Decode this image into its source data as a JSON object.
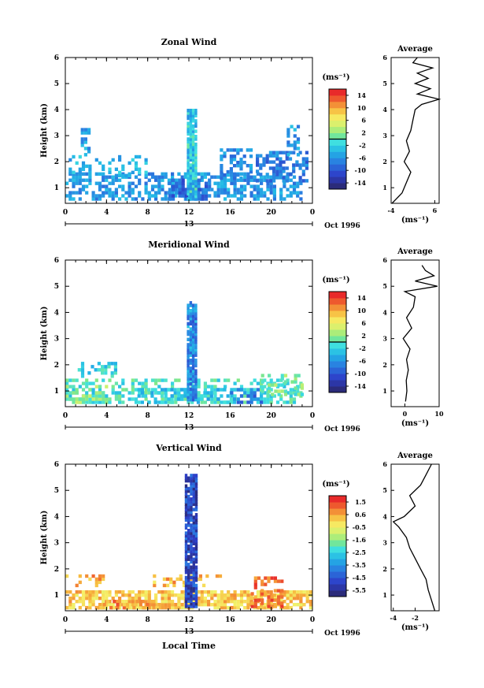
{
  "figure": {
    "date_label": "Oct 1996",
    "day_label": "13",
    "xlabel": "Local Time"
  },
  "chart_data": [
    {
      "type": "heatmap",
      "title": "Zonal Wind",
      "ylabel": "Height (km)",
      "xlim": [
        0,
        24
      ],
      "ylim": [
        0.4,
        6
      ],
      "x_ticks": [
        "0",
        "4",
        "8",
        "12",
        "16",
        "20",
        "0"
      ],
      "y_ticks": [
        "1",
        "2",
        "3",
        "4",
        "5",
        "6"
      ],
      "colorbar": {
        "unit": "(ms⁻¹)",
        "min": -16,
        "max": 16,
        "ticks": [
          "14",
          "10",
          "6",
          "2",
          "-2",
          "-6",
          "-10",
          "-14"
        ],
        "marker": 0
      },
      "spike_color": "#29a8e0",
      "patches": [
        {
          "x": [
            0,
            23
          ],
          "y": [
            0.5,
            1.5
          ],
          "value": -6,
          "density": 0.55
        },
        {
          "x": [
            0,
            8
          ],
          "y": [
            1.4,
            2.2
          ],
          "value": -4,
          "density": 0.28
        },
        {
          "x": [
            1.5,
            2.3
          ],
          "y": [
            2.2,
            3.2
          ],
          "value": -5,
          "density": 0.45
        },
        {
          "x": [
            15,
            18
          ],
          "y": [
            1.3,
            2.5
          ],
          "value": -7,
          "density": 0.5
        },
        {
          "x": [
            18.5,
            23.5
          ],
          "y": [
            1.2,
            2.3
          ],
          "value": -8,
          "density": 0.45
        },
        {
          "x": [
            21.5,
            22.6
          ],
          "y": [
            2.2,
            3.4
          ],
          "value": -6,
          "density": 0.5
        },
        {
          "x": [
            10,
            14
          ],
          "y": [
            0.5,
            1.3
          ],
          "value": -9,
          "density": 0.6
        }
      ],
      "spike": {
        "x": [
          11.8,
          12.7
        ],
        "y": [
          0.5,
          4.0
        ],
        "value": -3
      },
      "average": {
        "xlim": [
          -4,
          7
        ],
        "x_ticks": [
          "-4",
          "6"
        ],
        "xlabel": "(ms⁻¹)",
        "title": "Average",
        "height": [
          0.4,
          0.8,
          1.2,
          1.6,
          2.0,
          2.4,
          2.8,
          3.2,
          3.6,
          4.0,
          4.2,
          4.4,
          4.6,
          4.8,
          5.0,
          5.2,
          5.4,
          5.6,
          5.8,
          6.0
        ],
        "value": [
          -3.8,
          -1.5,
          -0.5,
          0.5,
          -1.0,
          0.2,
          -0.5,
          0.5,
          1.0,
          1.5,
          3.0,
          7.0,
          2.0,
          5.0,
          1.5,
          4.5,
          2.0,
          5.5,
          1.0,
          2.0
        ]
      }
    },
    {
      "type": "heatmap",
      "title": "Meridional Wind",
      "ylabel": "Height (km)",
      "xlim": [
        0,
        24
      ],
      "ylim": [
        0.4,
        6
      ],
      "x_ticks": [
        "0",
        "4",
        "8",
        "12",
        "16",
        "20",
        "0"
      ],
      "y_ticks": [
        "1",
        "2",
        "3",
        "4",
        "5",
        "6"
      ],
      "colorbar": {
        "unit": "(ms⁻¹)",
        "min": -16,
        "max": 16,
        "ticks": [
          "14",
          "10",
          "6",
          "2",
          "-2",
          "-6",
          "-10",
          "-14"
        ],
        "marker": 0
      },
      "spike_color": "#2a6fd6",
      "patches": [
        {
          "x": [
            0,
            23
          ],
          "y": [
            0.5,
            1.4
          ],
          "value": -1,
          "density": 0.5
        },
        {
          "x": [
            1.2,
            4.8
          ],
          "y": [
            1.5,
            2.0
          ],
          "value": -2,
          "density": 0.35
        },
        {
          "x": [
            7,
            17
          ],
          "y": [
            0.5,
            1.0
          ],
          "value": -3,
          "density": 0.4
        },
        {
          "x": [
            16,
            19
          ],
          "y": [
            0.5,
            1.1
          ],
          "value": -8,
          "density": 0.45
        },
        {
          "x": [
            19,
            23
          ],
          "y": [
            0.8,
            1.6
          ],
          "value": 1,
          "density": 0.4
        },
        {
          "x": [
            0,
            4
          ],
          "y": [
            0.5,
            1.2
          ],
          "value": 2,
          "density": 0.35
        }
      ],
      "spike": {
        "x": [
          11.8,
          12.7
        ],
        "y": [
          0.6,
          4.4
        ],
        "value": -7
      },
      "average": {
        "xlim": [
          -4,
          10
        ],
        "x_ticks": [
          "0",
          "10"
        ],
        "xlabel": "(ms⁻¹)",
        "title": "Average",
        "height": [
          0.6,
          1.0,
          1.4,
          1.8,
          2.2,
          2.6,
          3.0,
          3.4,
          3.8,
          4.2,
          4.6,
          4.8,
          5.0,
          5.2,
          5.4,
          5.6,
          5.8
        ],
        "value": [
          0.2,
          0.6,
          0.4,
          1.0,
          0.5,
          1.5,
          -0.5,
          2.0,
          0.5,
          2.5,
          3.0,
          0.0,
          9.5,
          3.0,
          8.5,
          6.0,
          5.0
        ]
      }
    },
    {
      "type": "heatmap",
      "title": "Vertical Wind",
      "ylabel": "Height (km)",
      "xlim": [
        0,
        24
      ],
      "ylim": [
        0.4,
        6
      ],
      "x_ticks": [
        "0",
        "4",
        "8",
        "12",
        "16",
        "20",
        "0"
      ],
      "y_ticks": [
        "1",
        "2",
        "3",
        "4",
        "5",
        "6"
      ],
      "colorbar": {
        "unit": "(ms⁻¹)",
        "min": -6.0,
        "max": 2.0,
        "ticks": [
          "1.5",
          "0.6",
          "-0.5",
          "-1.6",
          "-2.5",
          "-3.5",
          "-4.5",
          "-5.5"
        ]
      },
      "spike_color": "#1a3fbf",
      "patches": [
        {
          "x": [
            0,
            24
          ],
          "y": [
            0.45,
            1.1
          ],
          "value": 0.3,
          "density": 0.75
        },
        {
          "x": [
            0,
            4
          ],
          "y": [
            1.3,
            1.75
          ],
          "value": 0.6,
          "density": 0.35
        },
        {
          "x": [
            8.5,
            15
          ],
          "y": [
            1.3,
            1.7
          ],
          "value": 0.5,
          "density": 0.35
        },
        {
          "x": [
            18,
            21
          ],
          "y": [
            0.5,
            1.6
          ],
          "value": 1.2,
          "density": 0.5
        },
        {
          "x": [
            3,
            9
          ],
          "y": [
            0.45,
            0.8
          ],
          "value": 0.9,
          "density": 0.3
        }
      ],
      "spike": {
        "x": [
          11.6,
          12.7
        ],
        "y": [
          0.5,
          5.5
        ],
        "value": -5.0
      },
      "average": {
        "xlim": [
          -4.2,
          0.2
        ],
        "x_ticks": [
          "-4",
          "-2"
        ],
        "xlabel": "(ms⁻¹)",
        "title": "Average",
        "height": [
          0.4,
          0.8,
          1.2,
          1.6,
          2.0,
          2.4,
          2.8,
          3.2,
          3.6,
          3.8,
          4.0,
          4.4,
          4.8,
          5.2,
          5.6,
          6.0
        ],
        "value": [
          -0.2,
          -0.5,
          -0.8,
          -1.0,
          -1.5,
          -2.0,
          -2.5,
          -2.8,
          -3.5,
          -4.0,
          -3.0,
          -2.0,
          -2.5,
          -1.5,
          -1.0,
          -0.5
        ]
      }
    }
  ]
}
